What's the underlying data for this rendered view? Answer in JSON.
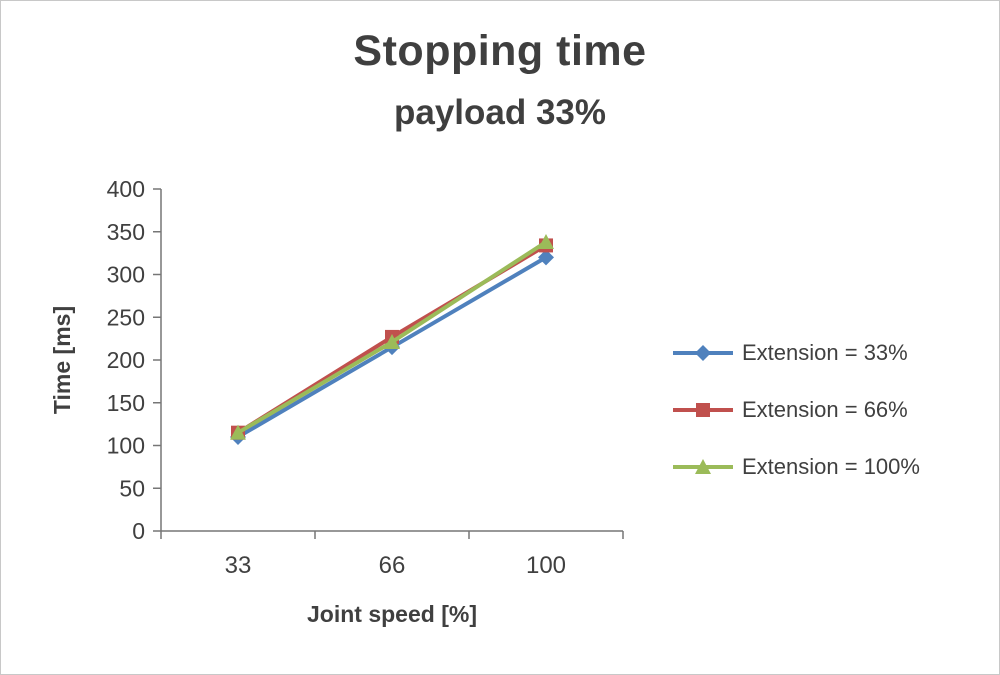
{
  "title": "Stopping time",
  "subtitle": "payload 33%",
  "chart_data": {
    "type": "line",
    "x": [
      "33",
      "66",
      "100"
    ],
    "xlabel": "Joint speed [%]",
    "ylabel": "Time [ms]",
    "ylim": [
      0,
      400
    ],
    "yticks": [
      0,
      50,
      100,
      150,
      200,
      250,
      300,
      350,
      400
    ],
    "grid": false,
    "legend_position": "right",
    "series": [
      {
        "name": "Extension = 33%",
        "marker": "diamond",
        "color": "#4F81BD",
        "values": [
          110,
          215,
          320
        ]
      },
      {
        "name": "Extension = 66%",
        "marker": "square",
        "color": "#C0504D",
        "values": [
          115,
          227,
          334
        ]
      },
      {
        "name": "Extension = 100%",
        "marker": "triangle",
        "color": "#9BBB59",
        "values": [
          115,
          221,
          338
        ]
      }
    ]
  },
  "colors": {
    "title": "#3F3F3F",
    "axis": "#767676",
    "tick_label": "#404040",
    "border": "#C8C8C8"
  }
}
